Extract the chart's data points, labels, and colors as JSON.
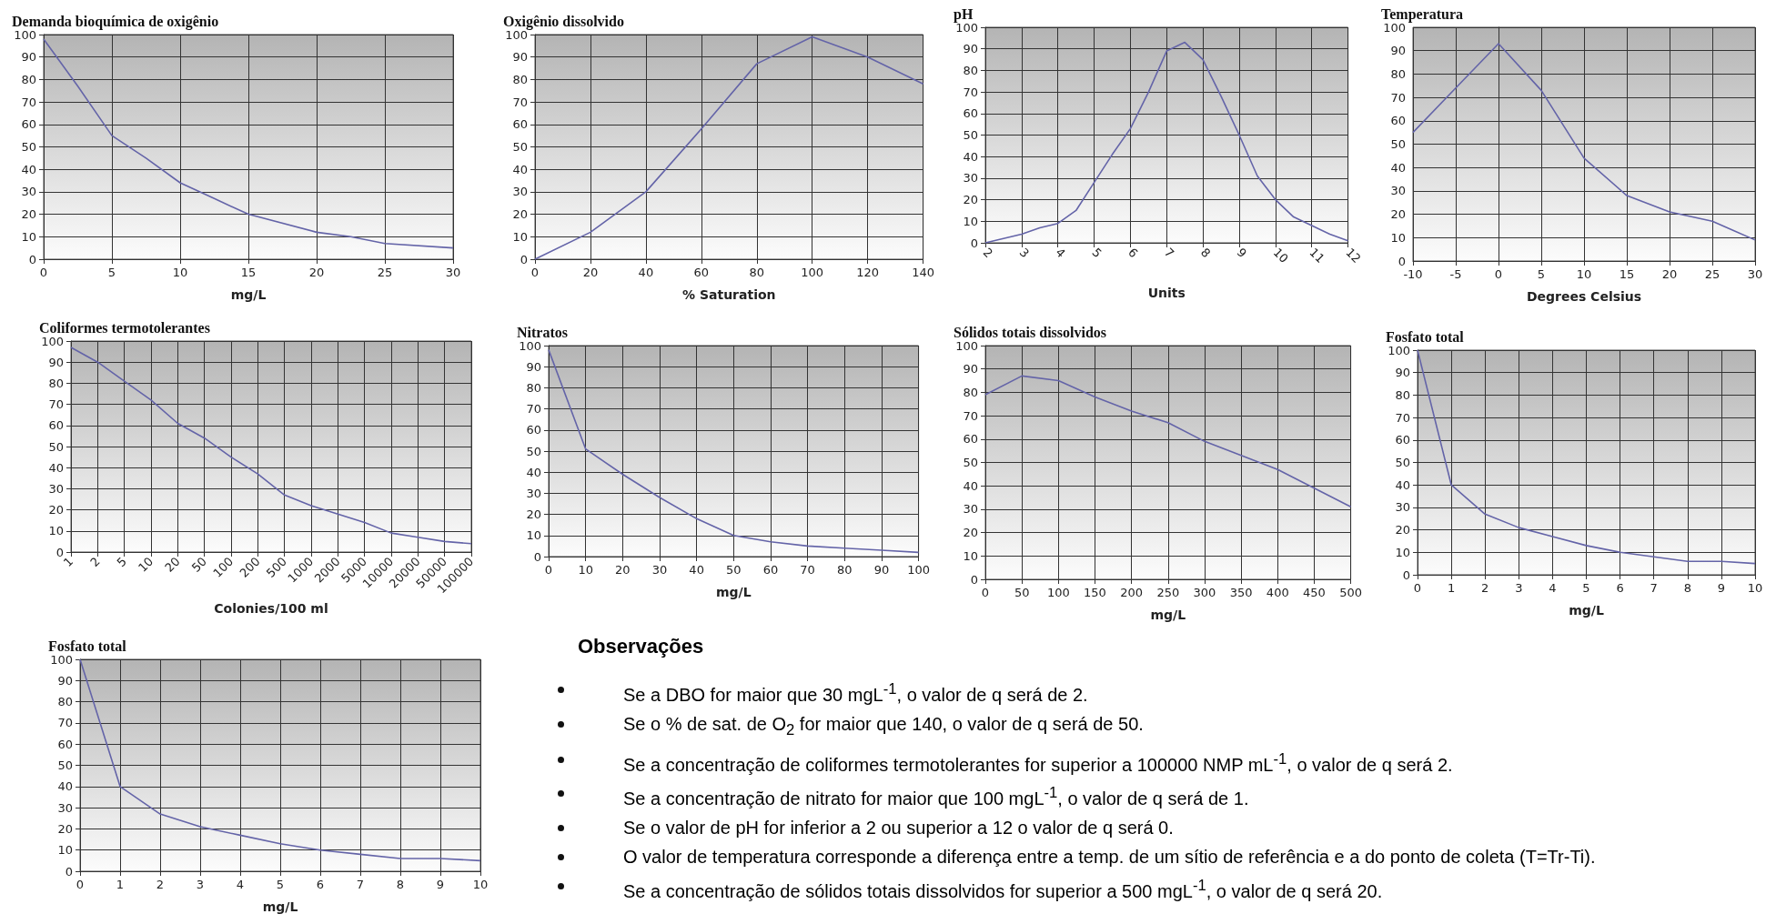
{
  "chart_data": [
    {
      "type": "line",
      "title": "Demanda bioquímica de oxigênio",
      "xlabel": "mg/L",
      "x": [
        0,
        2.5,
        5,
        7.5,
        10,
        12.5,
        15,
        20,
        22.5,
        25,
        30
      ],
      "values": [
        98,
        77,
        55,
        45,
        34,
        27,
        20,
        12,
        10,
        7,
        5
      ],
      "color": "#6464a8",
      "xlim": [
        0,
        30
      ],
      "xticks": [
        0,
        5,
        10,
        15,
        20,
        25,
        30
      ],
      "ylim": [
        0,
        100
      ],
      "yticks": [
        0,
        10,
        20,
        30,
        40,
        50,
        60,
        70,
        80,
        90,
        100
      ],
      "grid": true,
      "marker": "none"
    },
    {
      "type": "line",
      "title": "Oxigênio dissolvido",
      "xlabel": "% Saturation",
      "x": [
        0,
        20,
        40,
        60,
        80,
        100,
        120,
        140
      ],
      "values": [
        0,
        12,
        30,
        58,
        87,
        99,
        90,
        78
      ],
      "color": "#6464a8",
      "xlim": [
        0,
        140
      ],
      "xticks": [
        0,
        20,
        40,
        60,
        80,
        100,
        120,
        140
      ],
      "ylim": [
        0,
        100
      ],
      "yticks": [
        0,
        10,
        20,
        30,
        40,
        50,
        60,
        70,
        80,
        90,
        100
      ],
      "grid": true,
      "marker": "none"
    },
    {
      "type": "line",
      "title": "pH",
      "xlabel": "Units",
      "x": [
        2,
        3,
        3.5,
        4,
        4.5,
        5,
        5.5,
        6,
        6.5,
        7,
        7.5,
        8,
        8.5,
        9,
        9.5,
        10,
        10.5,
        11,
        11.5,
        12
      ],
      "values": [
        0,
        4,
        7,
        9,
        15,
        28,
        41,
        53,
        70,
        89,
        93,
        85,
        68,
        50,
        31,
        20,
        12,
        8,
        4,
        1
      ],
      "color": "#6464a8",
      "xlim": [
        2,
        12
      ],
      "xticks": [
        2,
        3,
        4,
        5,
        6,
        7,
        8,
        9,
        10,
        11,
        12
      ],
      "ylim": [
        0,
        100
      ],
      "yticks": [
        0,
        10,
        20,
        30,
        40,
        50,
        60,
        70,
        80,
        90,
        100
      ],
      "grid": true,
      "marker": "none"
    },
    {
      "type": "line",
      "title": "Temperatura",
      "xlabel": "Degrees Celsius",
      "x": [
        -10,
        -5,
        0,
        5,
        10,
        15,
        20,
        25,
        30
      ],
      "values": [
        55,
        74,
        93,
        73,
        44,
        28,
        21,
        17,
        9
      ],
      "color": "#6464a8",
      "xlim": [
        -10,
        30
      ],
      "xticks": [
        -10,
        -5,
        0,
        5,
        10,
        15,
        20,
        25,
        30
      ],
      "ylim": [
        0,
        100
      ],
      "yticks": [
        0,
        10,
        20,
        30,
        40,
        50,
        60,
        70,
        80,
        90,
        100
      ],
      "grid": true,
      "marker": "none"
    },
    {
      "type": "line",
      "title": "Coliformes termotolerantes",
      "xlabel": "Colonies/100 ml",
      "categories": [
        "1",
        "2",
        "5",
        "10",
        "20",
        "50",
        "100",
        "200",
        "500",
        "1000",
        "2000",
        "5000",
        "10000",
        "20000",
        "50000",
        "100000"
      ],
      "values": [
        97,
        90,
        81,
        72,
        61,
        54,
        45,
        37,
        27,
        22,
        18,
        14,
        9,
        7,
        5,
        4
      ],
      "color": "#6464a8",
      "ylim": [
        0,
        100
      ],
      "yticks": [
        0,
        10,
        20,
        30,
        40,
        50,
        60,
        70,
        80,
        90,
        100
      ],
      "grid": true,
      "marker": "none"
    },
    {
      "type": "line",
      "title": "Nitratos",
      "xlabel": "mg/L",
      "x": [
        0,
        10,
        20,
        30,
        40,
        50,
        60,
        70,
        80,
        90,
        100
      ],
      "values": [
        98,
        51,
        39,
        28,
        18,
        10,
        7,
        5,
        4,
        3,
        2
      ],
      "color": "#6464a8",
      "xlim": [
        0,
        100
      ],
      "xticks": [
        0,
        10,
        20,
        30,
        40,
        50,
        60,
        70,
        80,
        90,
        100
      ],
      "ylim": [
        0,
        100
      ],
      "yticks": [
        0,
        10,
        20,
        30,
        40,
        50,
        60,
        70,
        80,
        90,
        100
      ],
      "grid": true,
      "marker": "none"
    },
    {
      "type": "line",
      "title": "Sólidos totais dissolvidos",
      "xlabel": "mg/L",
      "x": [
        0,
        50,
        100,
        150,
        200,
        250,
        300,
        350,
        400,
        450,
        500
      ],
      "values": [
        79,
        87,
        85,
        78,
        72,
        67,
        59,
        53,
        47,
        39,
        31
      ],
      "color": "#6464a8",
      "xlim": [
        0,
        500
      ],
      "xticks": [
        0,
        50,
        100,
        150,
        200,
        250,
        300,
        350,
        400,
        450,
        500
      ],
      "ylim": [
        0,
        100
      ],
      "yticks": [
        0,
        10,
        20,
        30,
        40,
        50,
        60,
        70,
        80,
        90,
        100
      ],
      "grid": true,
      "marker": "none"
    },
    {
      "type": "line",
      "title": "Fosfato total",
      "xlabel": "mg/L",
      "x": [
        0,
        1,
        2,
        3,
        4,
        5,
        6,
        7,
        8,
        9,
        10
      ],
      "values": [
        100,
        40,
        27,
        21,
        17,
        13,
        10,
        8,
        6,
        6,
        5
      ],
      "color": "#6464a8",
      "xlim": [
        0,
        10
      ],
      "xticks": [
        0,
        1,
        2,
        3,
        4,
        5,
        6,
        7,
        8,
        9,
        10
      ],
      "ylim": [
        0,
        100
      ],
      "yticks": [
        0,
        10,
        20,
        30,
        40,
        50,
        60,
        70,
        80,
        90,
        100
      ],
      "grid": true,
      "marker": "none"
    },
    {
      "type": "line",
      "title": "Fosfato total",
      "xlabel": "mg/L",
      "x": [
        0,
        1,
        2,
        3,
        4,
        5,
        6,
        7,
        8,
        9,
        10
      ],
      "values": [
        100,
        40,
        27,
        21,
        17,
        13,
        10,
        8,
        6,
        6,
        5
      ],
      "color": "#6464a8",
      "xlim": [
        0,
        10
      ],
      "xticks": [
        0,
        1,
        2,
        3,
        4,
        5,
        6,
        7,
        8,
        9,
        10
      ],
      "ylim": [
        0,
        100
      ],
      "yticks": [
        0,
        10,
        20,
        30,
        40,
        50,
        60,
        70,
        80,
        90,
        100
      ],
      "grid": true,
      "marker": "none"
    },
    {
      "type": "other",
      "title": "Observações",
      "annotations": [
        "Se a DBO for maior que 30 mgL$^{-1}$, o valor de q será de 2.",
        "Se o % de sat. de O$_{2}$ for maior que 140, o valor de q será de 50.",
        "Se a concentração de coliformes termotolerantes for superior a 100000 NMP mL$^{-1}$, o valor de q será 2.",
        "Se a concentração de nitrato for maior que 100 mgL$^{-1}$, o valor de q será de 1.",
        "Se o valor de pH for inferior a 2 ou superior a 12 o valor de q será 0.",
        "O valor de temperatura corresponde a diferença entre a temp. de um sítio de referência e a do ponto de coleta (T=Tr-Ti).",
        "Se a concentração de sólidos totais dissolvidos for superior a 500 mgL$^{-1}$, o valor de q será 20."
      ]
    }
  ]
}
